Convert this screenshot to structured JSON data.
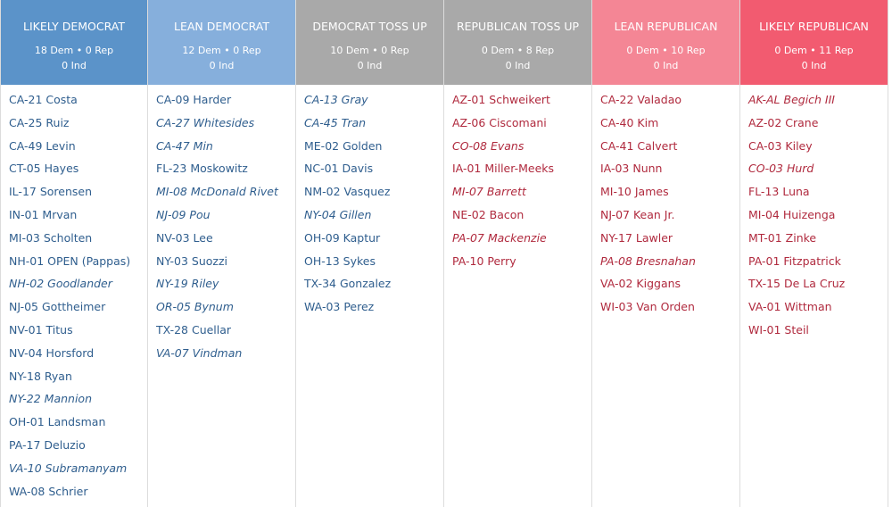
{
  "colors": {
    "dem_text": "#2f5e8e",
    "rep_text": "#b02a3e"
  },
  "columns": [
    {
      "title": "LIKELY DEMOCRAT",
      "counts": "18 Dem • 0 Rep",
      "ind": "0 Ind",
      "color": "#5b93c9",
      "party": "dem",
      "items": [
        [
          "CA-21 Costa",
          0
        ],
        [
          "CA-25 Ruiz",
          0
        ],
        [
          "CA-49 Levin",
          0
        ],
        [
          "CT-05 Hayes",
          0
        ],
        [
          "IL-17 Sorensen",
          0
        ],
        [
          "IN-01 Mrvan",
          0
        ],
        [
          "MI-03 Scholten",
          0
        ],
        [
          "NH-01 OPEN (Pappas)",
          0
        ],
        [
          "NH-02 Goodlander",
          1
        ],
        [
          "NJ-05 Gottheimer",
          0
        ],
        [
          "NV-01 Titus",
          0
        ],
        [
          "NV-04 Horsford",
          0
        ],
        [
          "NY-18 Ryan",
          0
        ],
        [
          "NY-22 Mannion",
          1
        ],
        [
          "OH-01 Landsman",
          0
        ],
        [
          "PA-17 Deluzio",
          0
        ],
        [
          "VA-10 Subramanyam",
          1
        ],
        [
          "WA-08 Schrier",
          0
        ]
      ]
    },
    {
      "title": "LEAN DEMOCRAT",
      "counts": "12 Dem • 0 Rep",
      "ind": "0 Ind",
      "color": "#86afdc",
      "party": "dem",
      "items": [
        [
          "CA-09 Harder",
          0
        ],
        [
          "CA-27 Whitesides",
          1
        ],
        [
          "CA-47 Min",
          1
        ],
        [
          "FL-23 Moskowitz",
          0
        ],
        [
          "MI-08 McDonald Rivet",
          1
        ],
        [
          "NJ-09 Pou",
          1
        ],
        [
          "NV-03 Lee",
          0
        ],
        [
          "NY-03 Suozzi",
          0
        ],
        [
          "NY-19 Riley",
          1
        ],
        [
          "OR-05 Bynum",
          1
        ],
        [
          "TX-28 Cuellar",
          0
        ],
        [
          "VA-07 Vindman",
          1
        ]
      ]
    },
    {
      "title": "DEMOCRAT TOSS UP",
      "counts": "10 Dem • 0 Rep",
      "ind": "0 Ind",
      "color": "#a9a9a9",
      "party": "dem",
      "items": [
        [
          "CA-13 Gray",
          1
        ],
        [
          "CA-45 Tran",
          1
        ],
        [
          "ME-02 Golden",
          0
        ],
        [
          "NC-01 Davis",
          0
        ],
        [
          "NM-02 Vasquez",
          0
        ],
        [
          "NY-04 Gillen",
          1
        ],
        [
          "OH-09 Kaptur",
          0
        ],
        [
          "OH-13 Sykes",
          0
        ],
        [
          "TX-34 Gonzalez",
          0
        ],
        [
          "WA-03 Perez",
          0
        ]
      ]
    },
    {
      "title": "REPUBLICAN TOSS UP",
      "counts": "0 Dem • 8 Rep",
      "ind": "0 Ind",
      "color": "#a9a9a9",
      "party": "rep",
      "items": [
        [
          "AZ-01 Schweikert",
          0
        ],
        [
          "AZ-06 Ciscomani",
          0
        ],
        [
          "CO-08 Evans",
          1
        ],
        [
          "IA-01 Miller-Meeks",
          0
        ],
        [
          "MI-07 Barrett",
          1
        ],
        [
          "NE-02 Bacon",
          0
        ],
        [
          "PA-07 Mackenzie",
          1
        ],
        [
          "PA-10 Perry",
          0
        ]
      ]
    },
    {
      "title": "LEAN REPUBLICAN",
      "counts": "0 Dem • 10 Rep",
      "ind": "0 Ind",
      "color": "#f48695",
      "party": "rep",
      "items": [
        [
          "CA-22 Valadao",
          0
        ],
        [
          "CA-40 Kim",
          0
        ],
        [
          "CA-41 Calvert",
          0
        ],
        [
          "IA-03 Nunn",
          0
        ],
        [
          "MI-10 James",
          0
        ],
        [
          "NJ-07 Kean Jr.",
          0
        ],
        [
          "NY-17 Lawler",
          0
        ],
        [
          "PA-08 Bresnahan",
          1
        ],
        [
          "VA-02 Kiggans",
          0
        ],
        [
          "WI-03 Van Orden",
          0
        ]
      ]
    },
    {
      "title": "LIKELY REPUBLICAN",
      "counts": "0 Dem • 11 Rep",
      "ind": "0 Ind",
      "color": "#f25b70",
      "party": "rep",
      "items": [
        [
          "AK-AL Begich III",
          1
        ],
        [
          "AZ-02 Crane",
          0
        ],
        [
          "CA-03 Kiley",
          0
        ],
        [
          "CO-03 Hurd",
          1
        ],
        [
          "FL-13 Luna",
          0
        ],
        [
          "MI-04 Huizenga",
          0
        ],
        [
          "MT-01 Zinke",
          0
        ],
        [
          "PA-01 Fitzpatrick",
          0
        ],
        [
          "TX-15 De La Cruz",
          0
        ],
        [
          "VA-01 Wittman",
          0
        ],
        [
          "WI-01 Steil",
          0
        ]
      ]
    }
  ]
}
